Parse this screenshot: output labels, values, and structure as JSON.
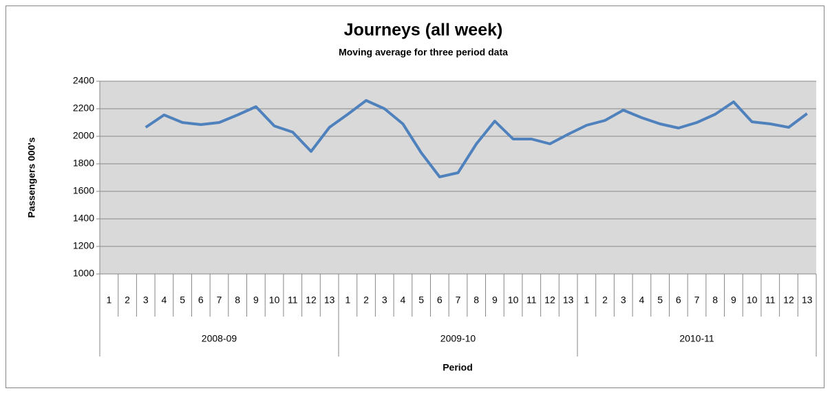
{
  "chart_data": {
    "type": "line",
    "title": "Journeys (all week)",
    "subtitle": "Moving average for three period data",
    "y_label": "Passengers 000's",
    "x_label": "Period",
    "groups": [
      "2008-09",
      "2009-10",
      "2010-11"
    ],
    "categories": [
      "1",
      "2",
      "3",
      "4",
      "5",
      "6",
      "7",
      "8",
      "9",
      "10",
      "11",
      "12",
      "13",
      "1",
      "2",
      "3",
      "4",
      "5",
      "6",
      "7",
      "8",
      "9",
      "10",
      "11",
      "12",
      "13",
      "1",
      "2",
      "3",
      "4",
      "5",
      "6",
      "7",
      "8",
      "9",
      "10",
      "11",
      "12",
      "13"
    ],
    "series": [
      {
        "name": "Journeys",
        "color": "#4f81bd",
        "values": [
          null,
          null,
          2065,
          2155,
          2100,
          2085,
          2100,
          2155,
          2215,
          2075,
          2030,
          1890,
          2065,
          2160,
          2260,
          2200,
          2090,
          1880,
          1705,
          1735,
          1945,
          2110,
          1980,
          1980,
          1945,
          2015,
          2080,
          2115,
          2190,
          2135,
          2090,
          2060,
          2100,
          2160,
          2250,
          2105,
          2090,
          2065,
          2165
        ]
      }
    ],
    "ylim": [
      1000,
      2400
    ],
    "yticks": [
      1000,
      1200,
      1400,
      1600,
      1800,
      2000,
      2200,
      2400
    ],
    "grid": true,
    "plot_background": "#d9d9d9"
  }
}
